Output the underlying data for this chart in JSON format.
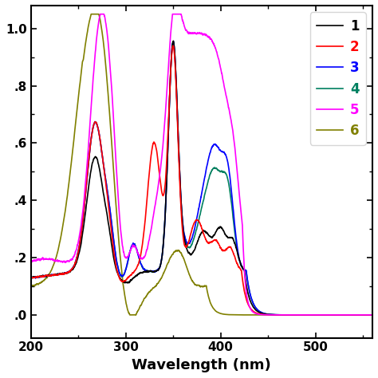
{
  "xlabel": "Wavelength (nm)",
  "xlim": [
    200,
    560
  ],
  "xticks": [
    200,
    300,
    400,
    500
  ],
  "ytick_vals": [
    0.0,
    0.2,
    0.4,
    0.6,
    0.8,
    1.0
  ],
  "ytick_labels": [
    ".0",
    ".2",
    ".4",
    ".6",
    ".8",
    "1.0"
  ],
  "colors": {
    "1": "#000000",
    "2": "#ff0000",
    "3": "#0000ff",
    "4": "#008060",
    "5": "#ff00ff",
    "6": "#808000"
  },
  "legend_labels": [
    "1",
    "2",
    "3",
    "4",
    "5",
    "6"
  ],
  "lw": 1.2
}
